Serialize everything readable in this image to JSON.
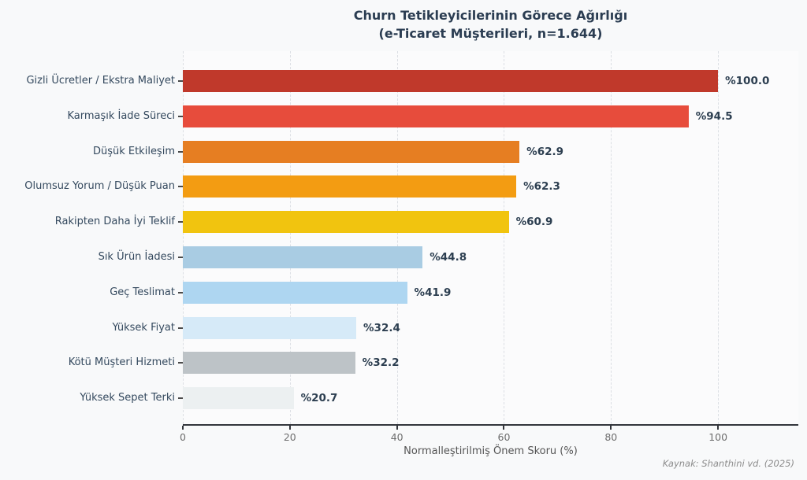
{
  "title": {
    "line1": "Churn Tetikleyicilerinin Görece Ağırlığı",
    "line2": "(e-Ticaret Müşterileri, n=1.644)"
  },
  "chart_data": {
    "type": "bar",
    "orientation": "horizontal",
    "title": "Churn Tetikleyicilerinin Görece Ağırlığı (e-Ticaret Müşterileri, n=1.644)",
    "categories": [
      "Gizli Ücretler / Ekstra Maliyet",
      "Karmaşık İade Süreci",
      "Düşük Etkileşim",
      "Olumsuz Yorum / Düşük Puan",
      "Rakipten Daha İyi Teklif",
      "Sık Ürün İadesi",
      "Geç Teslimat",
      "Yüksek Fiyat",
      "Kötü Müşteri Hizmeti",
      "Yüksek Sepet Terki"
    ],
    "values": [
      100.0,
      94.5,
      62.9,
      62.3,
      60.9,
      44.8,
      41.9,
      32.4,
      32.2,
      20.7
    ],
    "value_labels": [
      "%100.0",
      "%94.5",
      "%62.9",
      "%62.3",
      "%60.9",
      "%44.8",
      "%41.9",
      "%32.4",
      "%32.2",
      "%20.7"
    ],
    "bar_colors": [
      "#c0392b",
      "#e74c3c",
      "#e67e22",
      "#f39c12",
      "#f1c40f",
      "#a9cce3",
      "#aed6f1",
      "#d6eaf8",
      "#bdc3c7",
      "#ecf0f1"
    ],
    "xlabel": "Normalleştirilmiş Önem Skoru (%)",
    "xlim": [
      0,
      115
    ],
    "xticks": [
      0,
      20,
      40,
      60,
      80,
      100
    ],
    "xtick_labels": [
      "0",
      "20",
      "40",
      "60",
      "80",
      "100"
    ],
    "grid": "vertical dashed",
    "legend": "none",
    "source_note": "Kaynak: Shanthini vd. (2025)"
  },
  "colors": {
    "background": "#f8f9fa",
    "title_text": "#2b3d52",
    "category_text": "#34495e",
    "value_text": "#2c3e50",
    "tick_text": "#6d6d6d",
    "axis_line": "#33363c",
    "gridline": "#dcdfe4",
    "source_text": "#8c8c8c"
  }
}
